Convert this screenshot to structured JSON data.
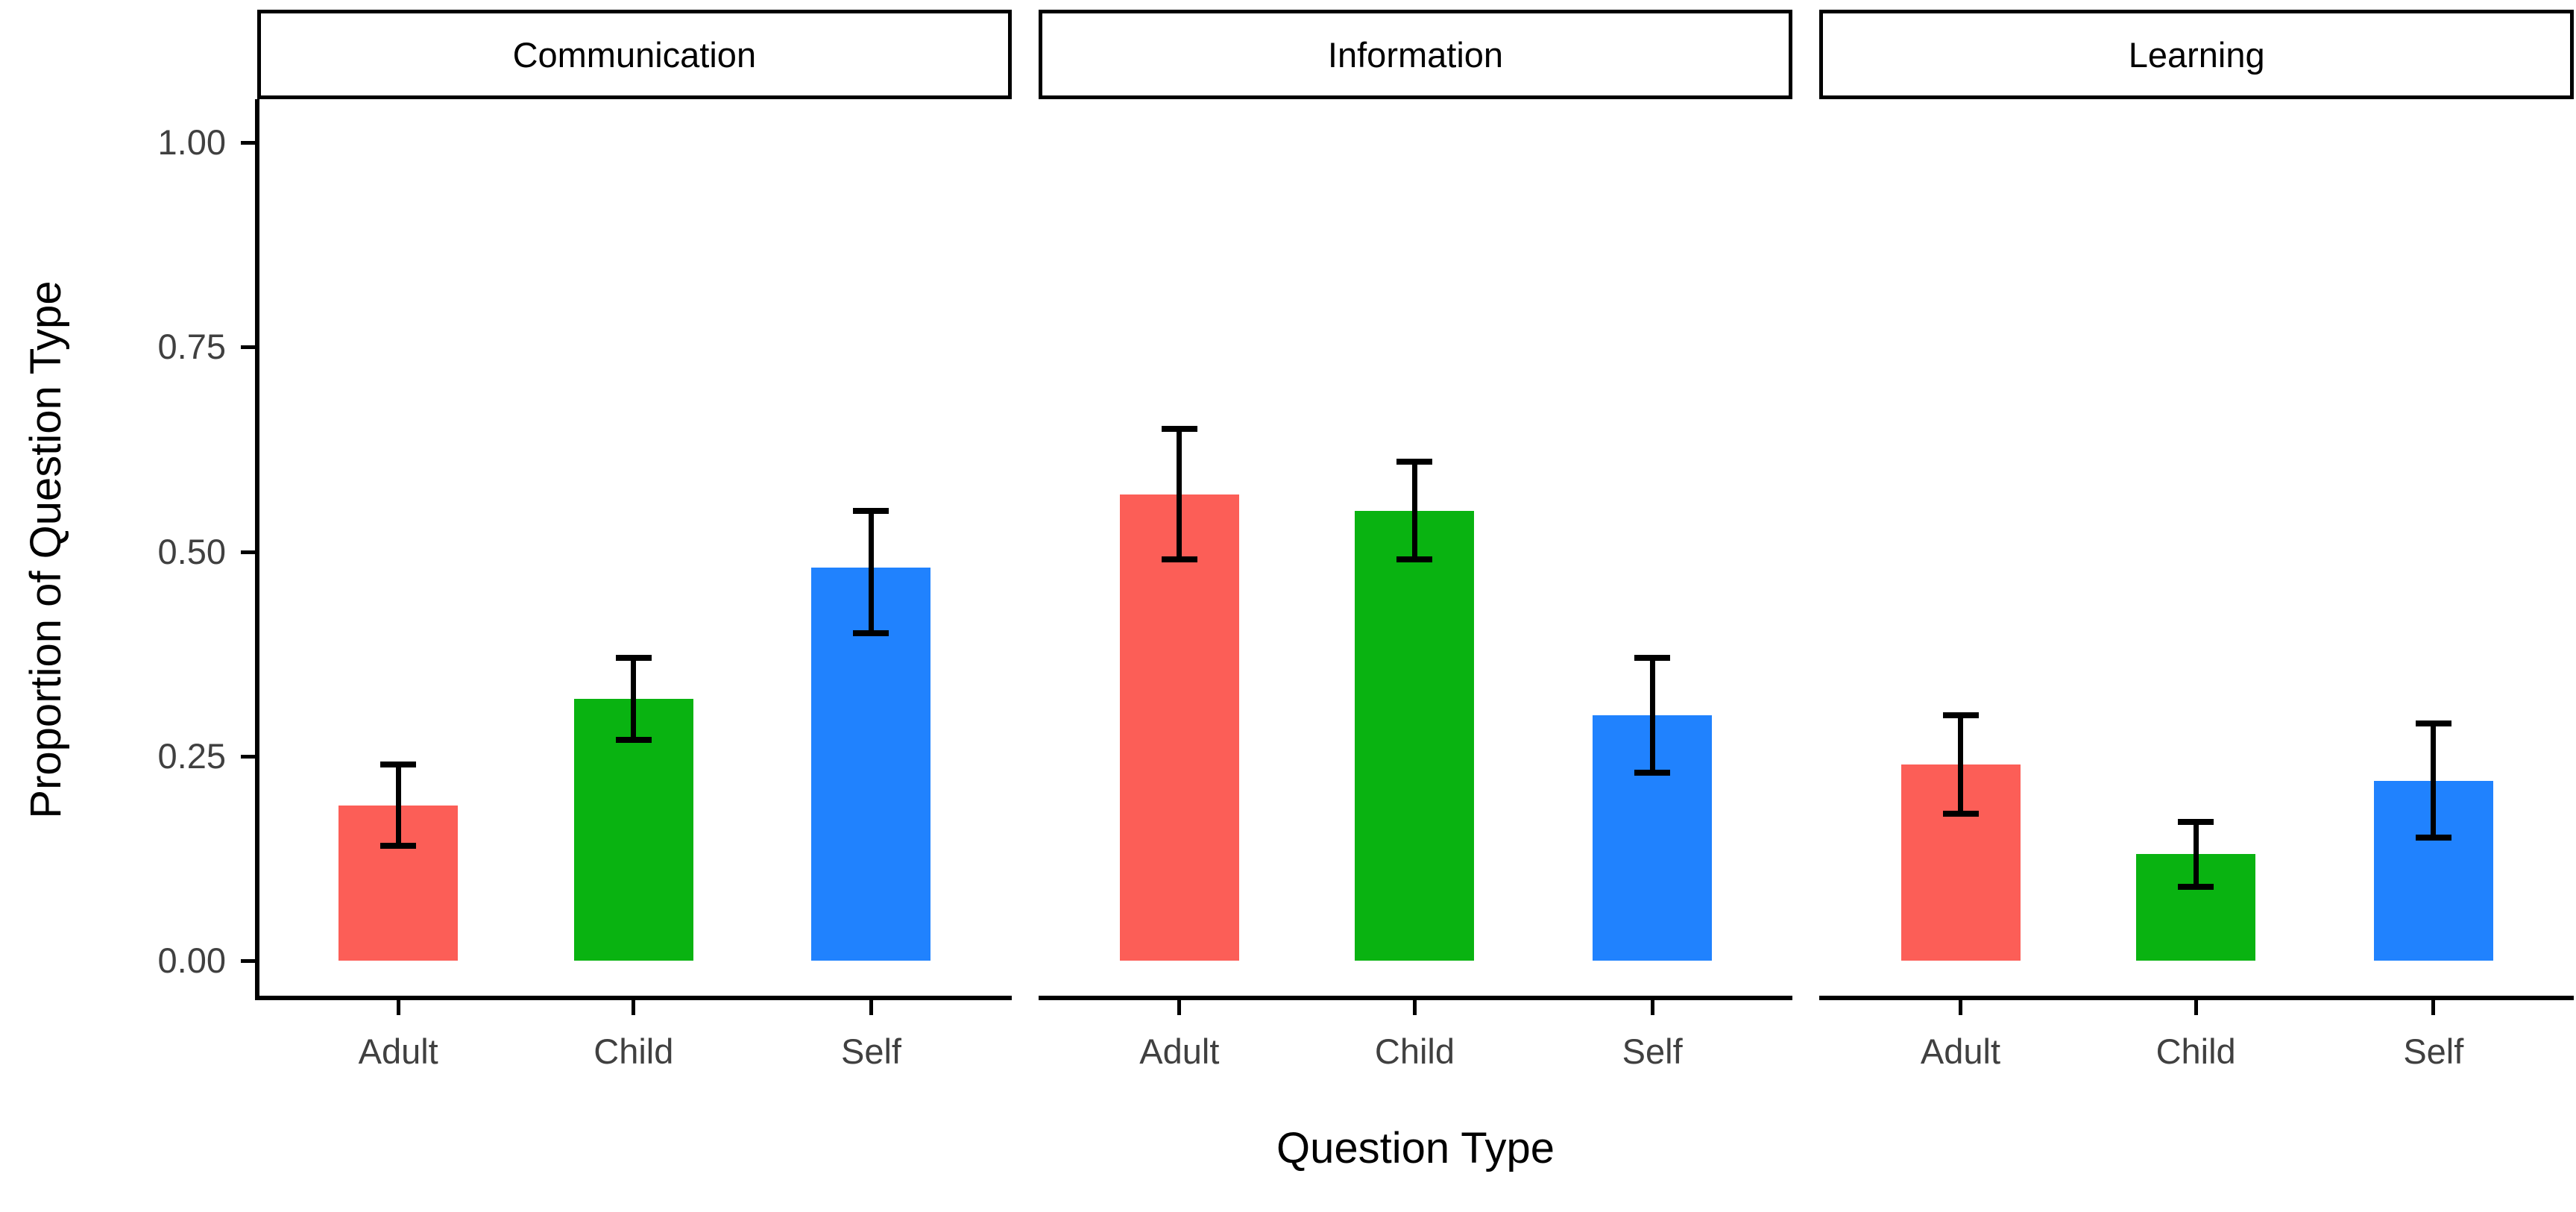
{
  "figure": {
    "background": "#ffffff",
    "axis_color": "#000000",
    "tick_label_color": "#404040",
    "error_bar_color": "#000000"
  },
  "chart_data": {
    "type": "bar",
    "title": "",
    "xlabel": "Question Type",
    "ylabel": "Proportion of Question Type",
    "categories": [
      "Adult",
      "Child",
      "Self"
    ],
    "bar_colors": [
      "#FC5E57",
      "#09B311",
      "#2082FE"
    ],
    "ylim": [
      0,
      1.0
    ],
    "y_ticks": [
      0,
      0.25,
      0.5,
      0.75,
      1.0
    ],
    "y_tick_labels": [
      "0.00",
      "0.25",
      "0.50",
      "0.75",
      "1.00"
    ],
    "grid": false,
    "legend": "none",
    "error_bars": true,
    "facets": [
      {
        "label": "Communication",
        "categories": [
          "Adult",
          "Child",
          "Self"
        ],
        "values": [
          0.19,
          0.32,
          0.48
        ],
        "error_low": [
          0.14,
          0.27,
          0.4
        ],
        "error_high": [
          0.24,
          0.37,
          0.55
        ]
      },
      {
        "label": "Information",
        "categories": [
          "Adult",
          "Child",
          "Self"
        ],
        "values": [
          0.57,
          0.55,
          0.3
        ],
        "error_low": [
          0.49,
          0.49,
          0.23
        ],
        "error_high": [
          0.65,
          0.61,
          0.37
        ]
      },
      {
        "label": "Learning",
        "categories": [
          "Adult",
          "Child",
          "Self"
        ],
        "values": [
          0.24,
          0.13,
          0.22
        ],
        "error_low": [
          0.18,
          0.09,
          0.15
        ],
        "error_high": [
          0.3,
          0.17,
          0.29
        ]
      }
    ]
  }
}
